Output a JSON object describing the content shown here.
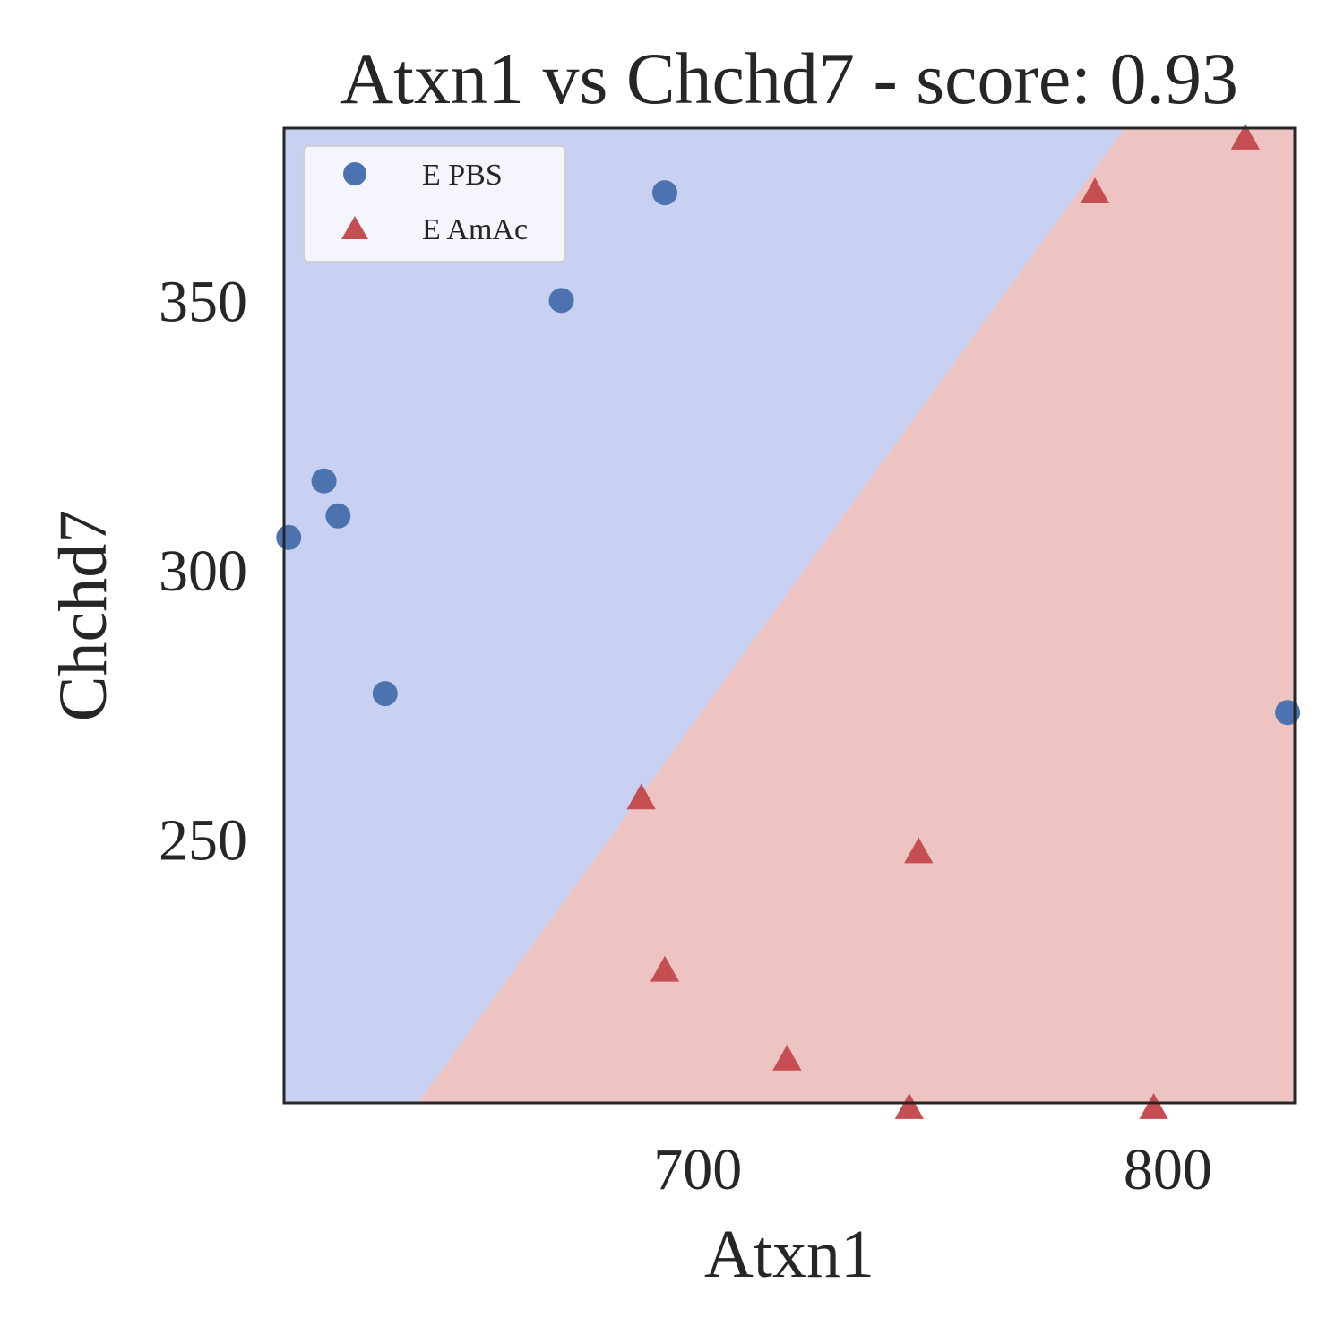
{
  "chart_data": {
    "type": "scatter",
    "title": "Atxn1 vs Chchd7 - score: 0.93",
    "xlabel": "Atxn1",
    "ylabel": "Chchd7",
    "xlim": [
      612,
      827
    ],
    "ylim": [
      201,
      382
    ],
    "xticks": [
      700,
      800
    ],
    "yticks": [
      250,
      300,
      350
    ],
    "grid": false,
    "legend": {
      "placement": "top-left"
    },
    "decision_regions": {
      "boundary": [
        [
          640.5,
          201
        ],
        [
          790.8,
          382
        ]
      ],
      "left_region_color": "#c8d1f1",
      "right_region_color": "#eec4c3"
    },
    "series": [
      {
        "name": "E PBS",
        "marker": "circle",
        "color": "#4c72b0",
        "points": [
          [
            613,
            306
          ],
          [
            620.5,
            316.5
          ],
          [
            623.5,
            310
          ],
          [
            633.5,
            277
          ],
          [
            671,
            350
          ],
          [
            693,
            370
          ],
          [
            825.5,
            273.5
          ]
        ]
      },
      {
        "name": "E AmAc",
        "marker": "triangle",
        "color": "#c44e52",
        "points": [
          [
            688,
            257.5
          ],
          [
            693,
            225.5
          ],
          [
            719,
            209
          ],
          [
            745,
            200
          ],
          [
            747,
            247.5
          ],
          [
            784.5,
            370
          ],
          [
            797,
            200
          ],
          [
            816.5,
            380
          ]
        ]
      }
    ]
  }
}
